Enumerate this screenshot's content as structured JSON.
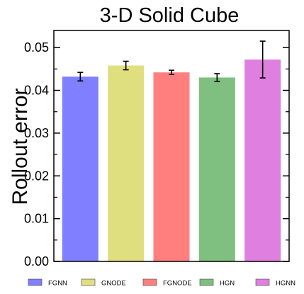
{
  "chart_data": {
    "type": "bar",
    "title": "3-D Solid Cube",
    "xlabel": "",
    "ylabel": "Rollout error",
    "ylim": [
      0,
      0.054
    ],
    "yticks": [
      "0.00",
      "0.01",
      "0.02",
      "0.03",
      "0.04",
      "0.05"
    ],
    "categories": [
      "FGNN",
      "GNODE",
      "FGNODE",
      "HGN",
      "HGNN"
    ],
    "values": [
      0.0432,
      0.0458,
      0.0442,
      0.043,
      0.0472
    ],
    "errors": [
      0.001,
      0.001,
      0.0005,
      0.0009,
      0.0043
    ],
    "colors": [
      "#7f7fff",
      "#dfdf7f",
      "#ff7f7f",
      "#7fbf7f",
      "#df7fdf"
    ],
    "grid": false,
    "legend": {
      "placement": "bottom",
      "entries": [
        "FGNN",
        "GNODE",
        "FGNODE",
        "HGN",
        "HGNN"
      ]
    }
  }
}
